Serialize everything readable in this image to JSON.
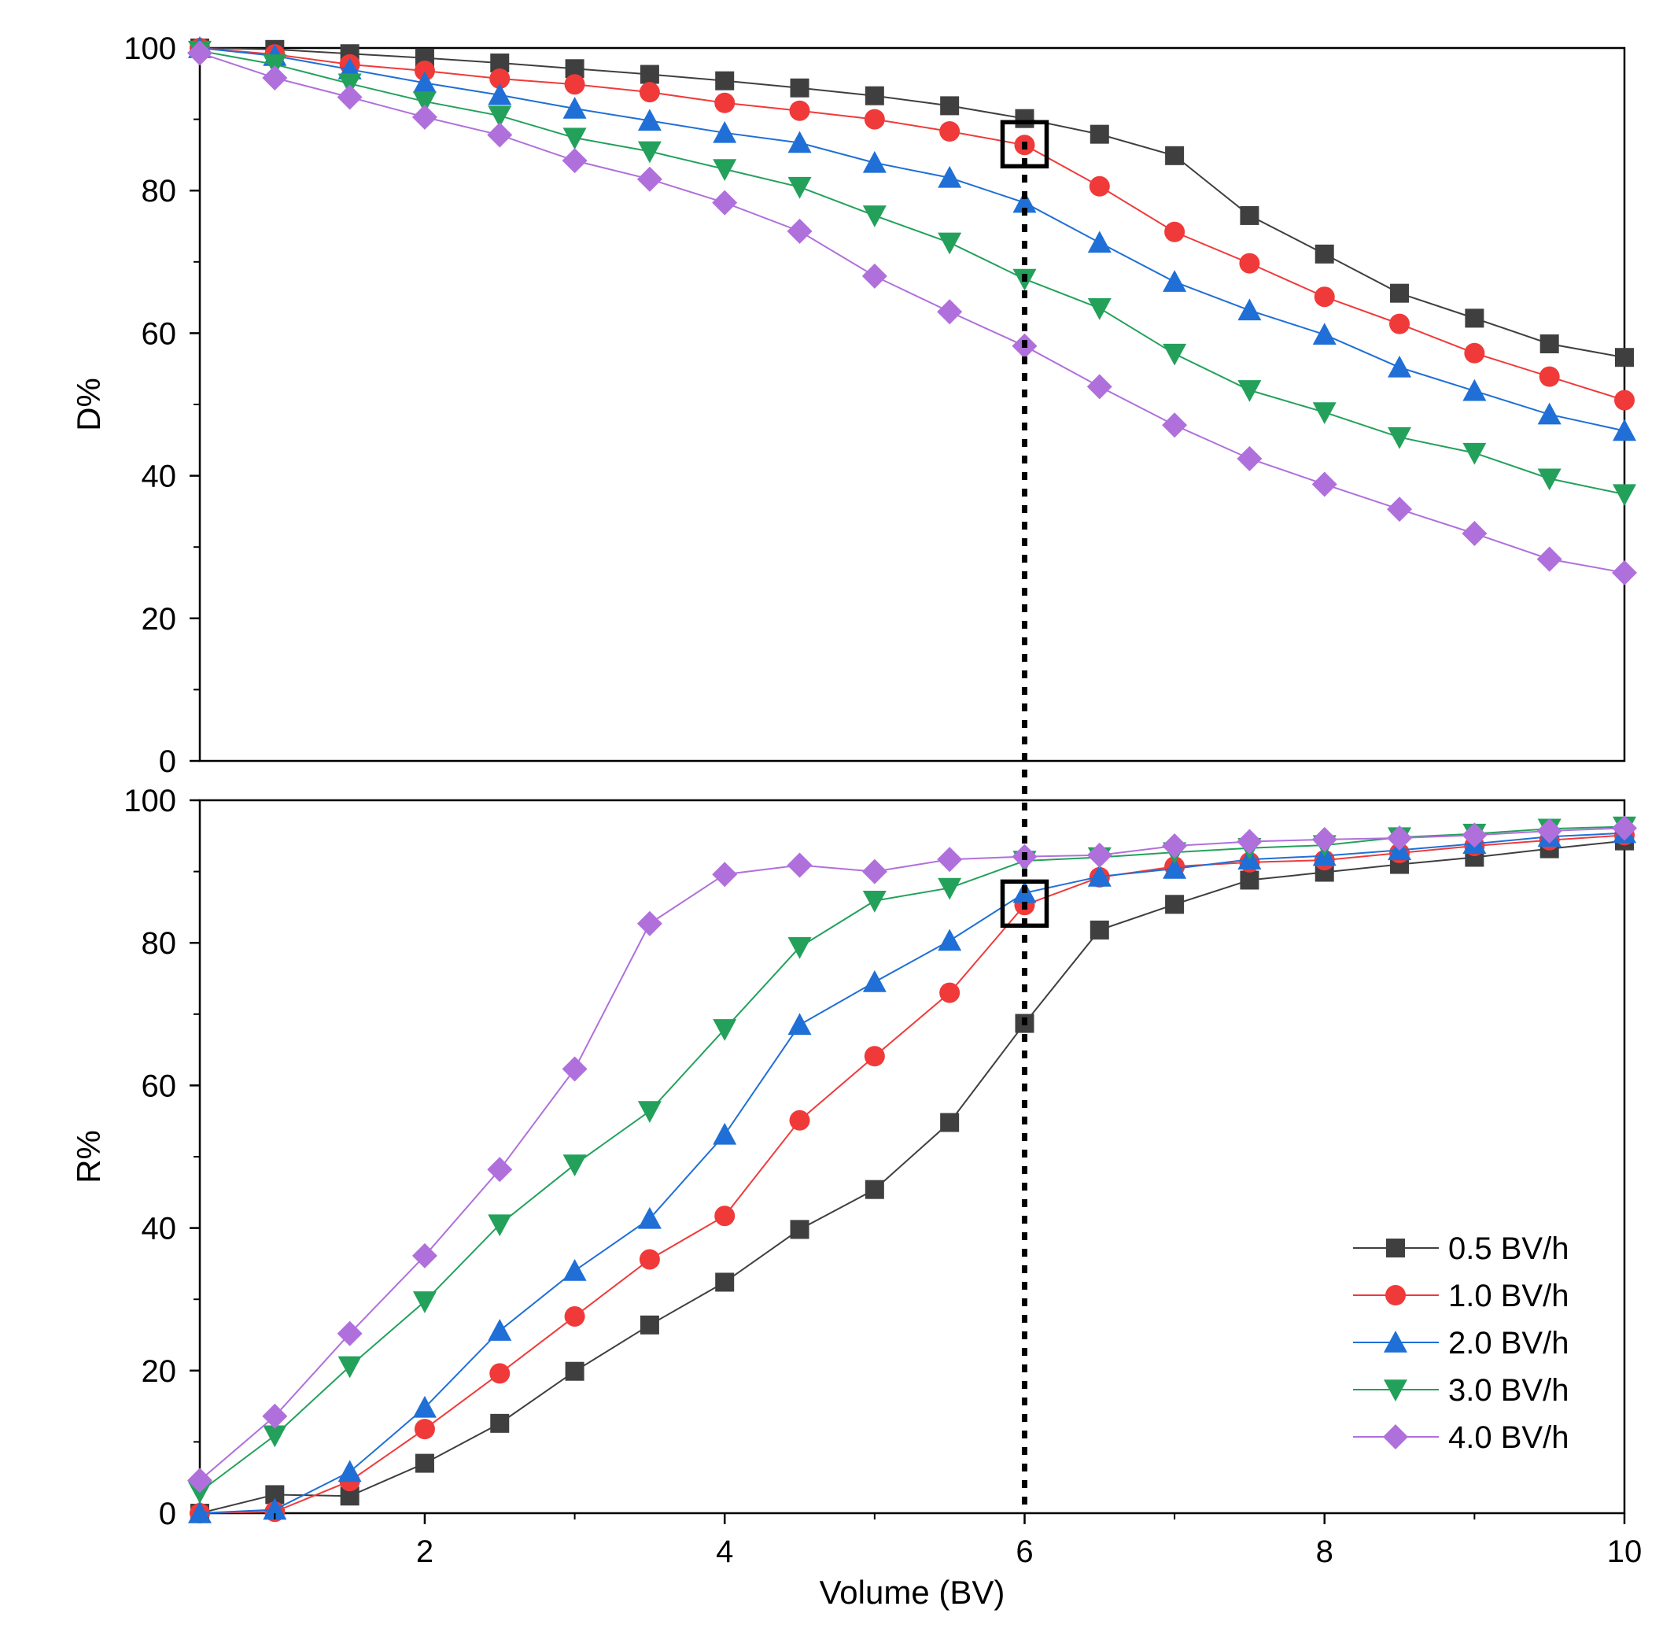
{
  "chart_data": {
    "type": "line",
    "x": [
      0.5,
      1,
      1.5,
      2,
      2.5,
      3,
      3.5,
      4,
      4.5,
      5,
      5.5,
      6,
      6.5,
      7,
      7.5,
      8,
      8.5,
      9,
      9.5,
      10
    ],
    "xlabel": "Volume (BV)",
    "xlim": [
      0.5,
      10
    ],
    "xticks": [
      "2",
      "4",
      "6",
      "8",
      "10"
    ],
    "marker_line_x": 6,
    "legend_position": "bottom-right of lower panel",
    "series_styles": [
      {
        "name": "0.5 BV/h",
        "color": "#3f3f3f",
        "marker": "square"
      },
      {
        "name": "1.0 BV/h",
        "color": "#f03a3a",
        "marker": "circle"
      },
      {
        "name": "2.0 BV/h",
        "color": "#1f6fd6",
        "marker": "triangle-up"
      },
      {
        "name": "3.0 BV/h",
        "color": "#23a15b",
        "marker": "triangle-down"
      },
      {
        "name": "4.0 BV/h",
        "color": "#b070dc",
        "marker": "diamond"
      }
    ],
    "panels": [
      {
        "ylabel": "D%",
        "ylim": [
          0,
          100
        ],
        "yticks": [
          "0",
          "20",
          "40",
          "60",
          "80",
          "100"
        ],
        "highlight": {
          "x": 6,
          "y": 86.5
        },
        "series": [
          {
            "name": "0.5 BV/h",
            "values": [
              100,
              99.8,
              99.2,
              98.6,
              97.9,
              97.1,
              96.3,
              95.4,
              94.4,
              93.3,
              91.9,
              90.1,
              87.9,
              84.9,
              76.5,
              71.1,
              65.6,
              62.1,
              58.5,
              56.6
            ]
          },
          {
            "name": "1.0 BV/h",
            "values": [
              100,
              99.1,
              97.7,
              96.8,
              95.7,
              94.9,
              93.8,
              92.3,
              91.2,
              90.0,
              88.3,
              86.4,
              80.6,
              74.2,
              69.8,
              65.1,
              61.3,
              57.2,
              53.9,
              50.6
            ]
          },
          {
            "name": "2.0 BV/h",
            "values": [
              100,
              98.9,
              97.0,
              95.1,
              93.4,
              91.5,
              89.8,
              88.1,
              86.7,
              83.9,
              81.8,
              78.3,
              72.7,
              67.2,
              63.2,
              59.8,
              55.2,
              51.9,
              48.6,
              46.3
            ]
          },
          {
            "name": "3.0 BV/h",
            "values": [
              99.6,
              97.7,
              95.0,
              92.5,
              90.5,
              87.4,
              85.5,
              83.0,
              80.5,
              76.5,
              72.7,
              67.6,
              63.5,
              57.1,
              52.0,
              48.9,
              45.4,
              43.2,
              39.6,
              37.4
            ]
          },
          {
            "name": "4.0 BV/h",
            "values": [
              99.3,
              95.8,
              93.1,
              90.3,
              87.8,
              84.2,
              81.6,
              78.3,
              74.3,
              68.0,
              63.0,
              58.2,
              52.5,
              47.1,
              42.4,
              38.8,
              35.3,
              31.9,
              28.3,
              26.4
            ]
          }
        ]
      },
      {
        "ylabel": "R%",
        "ylim": [
          0,
          100
        ],
        "yticks": [
          "0",
          "20",
          "40",
          "60",
          "80",
          "100"
        ],
        "highlight": {
          "x": 6,
          "y": 85.5
        },
        "series": [
          {
            "name": "0.5 BV/h",
            "values": [
              0,
              2.6,
              2.4,
              7.0,
              12.6,
              19.9,
              26.4,
              32.4,
              39.8,
              45.4,
              54.8,
              68.7,
              81.8,
              85.4,
              88.8,
              89.9,
              91.0,
              92.0,
              93.2,
              94.3
            ]
          },
          {
            "name": "1.0 BV/h",
            "values": [
              0,
              0.2,
              4.5,
              11.8,
              19.6,
              27.6,
              35.6,
              41.7,
              55.1,
              64.1,
              73.0,
              85.3,
              89.2,
              90.7,
              91.3,
              91.6,
              92.6,
              93.6,
              94.4,
              95.1
            ]
          },
          {
            "name": "2.0 BV/h",
            "values": [
              0,
              0.5,
              5.8,
              14.8,
              25.6,
              34.0,
              41.3,
              53.1,
              68.5,
              74.5,
              80.3,
              87.0,
              89.3,
              90.4,
              91.7,
              92.2,
              93.0,
              93.9,
              94.9,
              95.4
            ]
          },
          {
            "name": "3.0 BV/h",
            "values": [
              3.0,
              10.9,
              20.6,
              29.7,
              40.5,
              48.9,
              56.4,
              67.9,
              79.4,
              85.9,
              87.7,
              91.5,
              92.0,
              92.7,
              93.3,
              93.7,
              94.8,
              95.3,
              96.0,
              96.3
            ]
          },
          {
            "name": "4.0 BV/h",
            "values": [
              4.6,
              13.6,
              25.2,
              36.1,
              48.2,
              62.3,
              82.7,
              89.6,
              90.9,
              90.0,
              91.7,
              92.1,
              92.3,
              93.6,
              94.2,
              94.5,
              94.7,
              95.1,
              95.7,
              96.1
            ]
          }
        ]
      }
    ]
  }
}
